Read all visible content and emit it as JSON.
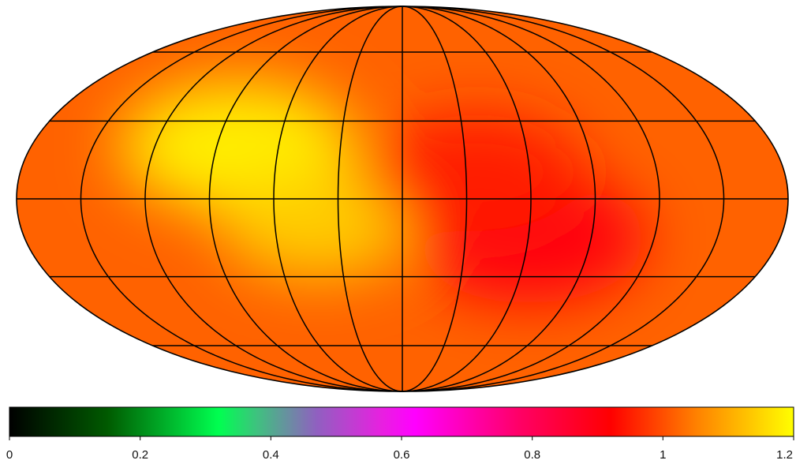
{
  "chart_data": {
    "type": "heatmap",
    "projection": "mollweide",
    "title": "",
    "graticule": {
      "meridians_deg": [
        -150,
        -120,
        -90,
        -60,
        -30,
        0,
        30,
        60,
        90,
        120,
        150
      ],
      "parallels_deg": [
        -60,
        -30,
        0,
        30,
        60
      ]
    },
    "colorbar": {
      "range": [
        0,
        1.2
      ],
      "tick_values": [
        0,
        0.2,
        0.4,
        0.6,
        0.8,
        1,
        1.2
      ],
      "tick_labels": [
        "0",
        "0.2",
        "0.4",
        "0.6",
        "0.8",
        "1",
        "1.2"
      ],
      "colormap_stops": [
        {
          "value": 0.0,
          "color": "#000000"
        },
        {
          "value": 0.15,
          "color": "#005a00"
        },
        {
          "value": 0.32,
          "color": "#00ff50"
        },
        {
          "value": 0.38,
          "color": "#40c080"
        },
        {
          "value": 0.47,
          "color": "#9060c0"
        },
        {
          "value": 0.57,
          "color": "#e820e0"
        },
        {
          "value": 0.62,
          "color": "#ff00ff"
        },
        {
          "value": 0.78,
          "color": "#ff0066"
        },
        {
          "value": 0.92,
          "color": "#ff0000"
        },
        {
          "value": 1.05,
          "color": "#ff8000"
        },
        {
          "value": 1.2,
          "color": "#ffff00"
        }
      ]
    },
    "field_estimate": {
      "description_units": "value on colorbar scale",
      "background": 1.02,
      "features": [
        {
          "lon_deg": -80,
          "lat_deg": 20,
          "value": 1.18,
          "width_deg": 55
        },
        {
          "lon_deg": -40,
          "lat_deg": -10,
          "value": 1.14,
          "width_deg": 45
        },
        {
          "lon_deg": 60,
          "lat_deg": -15,
          "value": 0.9,
          "width_deg": 55
        },
        {
          "lon_deg": 35,
          "lat_deg": 10,
          "value": 0.95,
          "width_deg": 50
        }
      ]
    }
  }
}
